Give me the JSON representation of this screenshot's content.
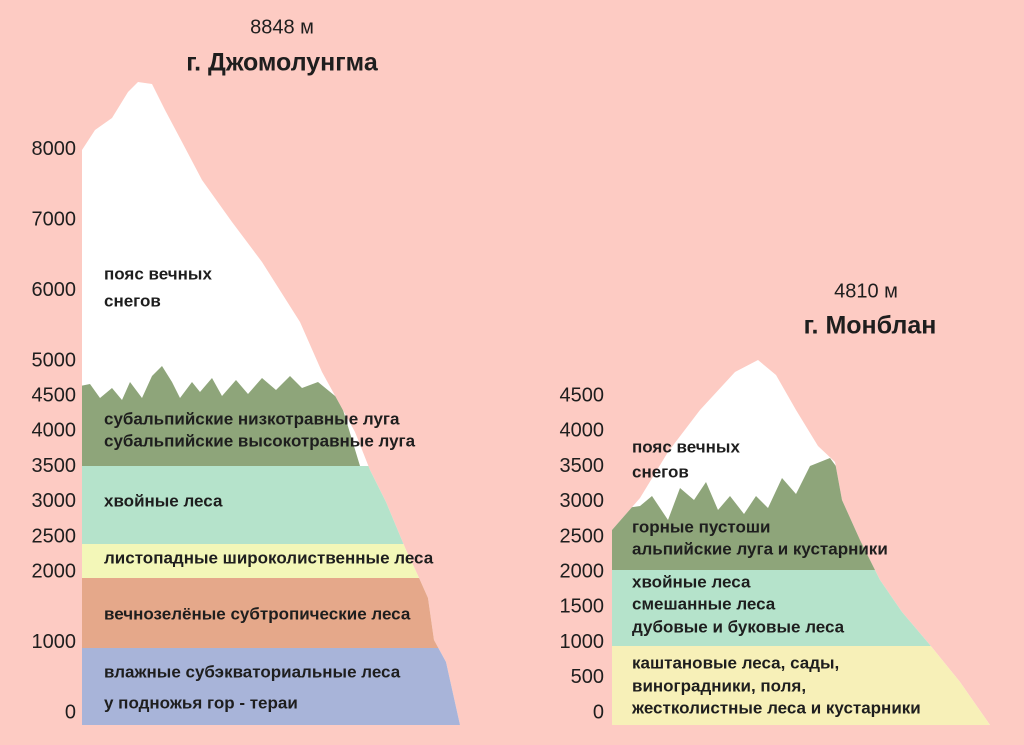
{
  "mountains": [
    {
      "height": "8848 м",
      "name": "г. Джомолунгма",
      "ticks": [
        0,
        1000,
        2000,
        2500,
        3000,
        3500,
        4000,
        4500,
        5000,
        6000,
        7000,
        8000
      ],
      "zones": [
        {
          "lines": [
            "пояс вечных",
            "снегов"
          ]
        },
        {
          "lines": [
            "субальпийские низкотравные луга",
            "субальпийские высокотравные луга"
          ]
        },
        {
          "lines": [
            "хвойные леса"
          ]
        },
        {
          "lines": [
            "листопадные широколиственные леса"
          ]
        },
        {
          "lines": [
            "вечнозелёные субтропические леса"
          ]
        },
        {
          "lines": [
            "влажные субэкваториальные леса",
            "у подножья гор - тераи"
          ]
        }
      ]
    },
    {
      "height": "4810 м",
      "name": "г. Монблан",
      "ticks": [
        0,
        500,
        1000,
        1500,
        2000,
        2500,
        3000,
        3500,
        4000,
        4500
      ],
      "zones": [
        {
          "lines": [
            "пояс вечных",
            "снегов"
          ]
        },
        {
          "lines": [
            "горные пустоши",
            "альпийские луга и кустарники"
          ]
        },
        {
          "lines": [
            "хвойные леса",
            "смешанные леса",
            "дубовые и буковые леса"
          ]
        },
        {
          "lines": [
            "каштановые леса, сады,",
            "виноградники, поля,",
            "жестколистные леса и кустарники"
          ]
        }
      ]
    }
  ]
}
